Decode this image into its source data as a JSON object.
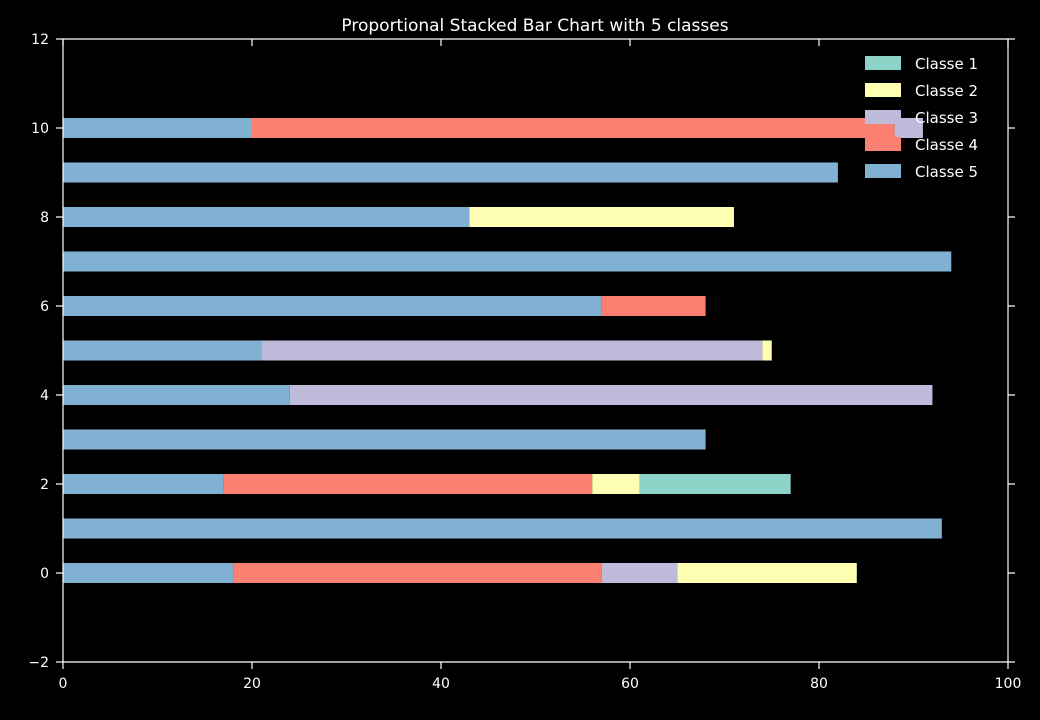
{
  "chart_data": {
    "type": "bar",
    "orientation": "horizontal",
    "stacked": true,
    "title": "Proportional Stacked Bar Chart with 5 classes",
    "xlabel": "",
    "ylabel": "",
    "xlim": [
      0,
      100
    ],
    "ylim": [
      -2,
      12
    ],
    "xticks": [
      0,
      20,
      40,
      60,
      80,
      100
    ],
    "yticks": [
      -2,
      0,
      2,
      4,
      6,
      8,
      10,
      12
    ],
    "grid": false,
    "legend": "top-right",
    "categories": [
      0,
      1,
      2,
      3,
      4,
      5,
      6,
      7,
      8,
      9,
      10
    ],
    "stack_order": [
      "Classe 5",
      "Classe 4",
      "Classe 3",
      "Classe 2",
      "Classe 1"
    ],
    "series": [
      {
        "name": "Classe 1",
        "color": "#8dd3c7",
        "values": [
          0,
          0,
          16,
          0,
          0,
          0,
          0,
          0,
          0,
          0,
          0
        ]
      },
      {
        "name": "Classe 2",
        "color": "#ffffb3",
        "values": [
          19,
          0,
          5,
          0,
          0,
          1,
          0,
          0,
          28,
          0,
          0
        ]
      },
      {
        "name": "Classe 3",
        "color": "#bebada",
        "values": [
          8,
          0,
          0,
          0,
          68,
          53,
          0,
          0,
          0,
          0,
          3
        ]
      },
      {
        "name": "Classe 4",
        "color": "#fb8072",
        "values": [
          39,
          0,
          39,
          0,
          0,
          0,
          11,
          0,
          0,
          0,
          68
        ]
      },
      {
        "name": "Classe 5",
        "color": "#80b1d3",
        "values": [
          18,
          93,
          17,
          68,
          24,
          21,
          57,
          94,
          43,
          82,
          20
        ]
      }
    ]
  }
}
